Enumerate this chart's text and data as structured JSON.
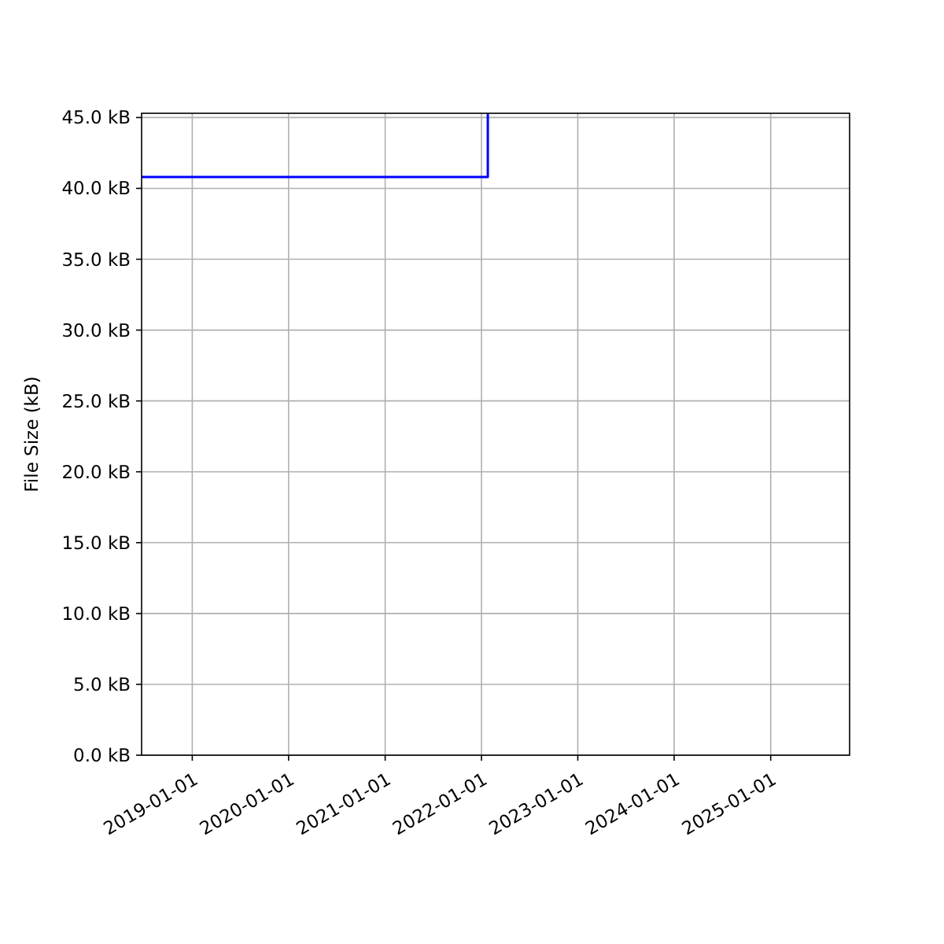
{
  "chart_data": {
    "type": "step",
    "ylabel": "File Size (kB)",
    "x": [
      "2018-06-23",
      "2022-01-25"
    ],
    "series": [
      {
        "color": "#0000ff",
        "values": [
          40.8,
          45.3
        ]
      }
    ],
    "xlim": [
      "2018-06-23",
      "2025-10-27"
    ],
    "xticks": [
      "2019-01-01",
      "2020-01-01",
      "2021-01-01",
      "2022-01-01",
      "2023-01-01",
      "2024-01-01",
      "2025-01-01"
    ],
    "ylim": [
      0,
      45.3
    ],
    "yticks": [
      {
        "value": 0,
        "label": "0.0 kB"
      },
      {
        "value": 5,
        "label": "5.0 kB"
      },
      {
        "value": 10,
        "label": "10.0 kB"
      },
      {
        "value": 15,
        "label": "15.0 kB"
      },
      {
        "value": 20,
        "label": "20.0 kB"
      },
      {
        "value": 25,
        "label": "25.0 kB"
      },
      {
        "value": 30,
        "label": "30.0 kB"
      },
      {
        "value": 35,
        "label": "35.0 kB"
      },
      {
        "value": 40,
        "label": "40.0 kB"
      },
      {
        "value": 45,
        "label": "45.0 kB"
      }
    ],
    "grid": true
  }
}
